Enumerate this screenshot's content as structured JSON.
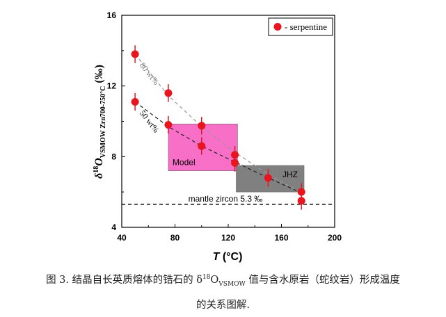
{
  "chart_data": {
    "type": "scatter",
    "xlabel_italic": "T",
    "xlabel_unit": "(°C)",
    "ylabel": {
      "delta": "δ",
      "sup": "18",
      "main": "O",
      "sub": "VSMOW Zrn700-750°C",
      "unit": "(‰)"
    },
    "xlim": [
      40,
      200
    ],
    "ylim": [
      4,
      16
    ],
    "x_ticks": [
      "40",
      "80",
      "120",
      "160",
      "200"
    ],
    "y_ticks": [
      "4",
      "8",
      "12",
      "16"
    ],
    "legend": {
      "label": "- serpentine",
      "placement": "top-right"
    },
    "series": [
      {
        "name": "serpentine",
        "color": "#e8141e",
        "points": [
          {
            "x": 50,
            "y": 13.8
          },
          {
            "x": 50,
            "y": 11.1
          },
          {
            "x": 75,
            "y": 11.6
          },
          {
            "x": 75,
            "y": 9.8
          },
          {
            "x": 100,
            "y": 9.75
          },
          {
            "x": 100,
            "y": 8.6
          },
          {
            "x": 125,
            "y": 8.1
          },
          {
            "x": 125,
            "y": 7.65
          },
          {
            "x": 150,
            "y": 6.8
          },
          {
            "x": 175,
            "y": 6.0
          },
          {
            "x": 175,
            "y": 5.5
          }
        ],
        "error": 0.5
      }
    ],
    "curves": [
      {
        "label": "80 wt%",
        "color": "#999999",
        "x": [
          50,
          75,
          100,
          125,
          150,
          175
        ],
        "y": [
          13.8,
          11.45,
          9.7,
          8.25,
          7.0,
          5.95
        ]
      },
      {
        "label": "50 wt%",
        "color": "#222222",
        "x": [
          50,
          75,
          100,
          125,
          150,
          175
        ],
        "y": [
          11.1,
          9.7,
          8.6,
          7.7,
          6.8,
          5.95
        ]
      }
    ],
    "regions": [
      {
        "label": "Model",
        "color": "#f76fc6",
        "x": [
          75,
          127
        ],
        "y": [
          7.2,
          9.85
        ]
      },
      {
        "label": "JHZ",
        "color": "#808080",
        "x": [
          126,
          177
        ],
        "y": [
          6.0,
          7.5
        ]
      }
    ],
    "reference_line": {
      "label": "mantle zircon 5.3 ‰",
      "y": 5.3
    }
  },
  "caption": {
    "line1_prefix": "图 3. 结晶自长英质熔体的锆石的 δ",
    "line1_sup": "18",
    "line1_mid": "O",
    "line1_sub": "VSMOW",
    "line1_suffix": " 值与含水原岩（蛇纹岩）形成温度",
    "line2": "的关系图解."
  }
}
